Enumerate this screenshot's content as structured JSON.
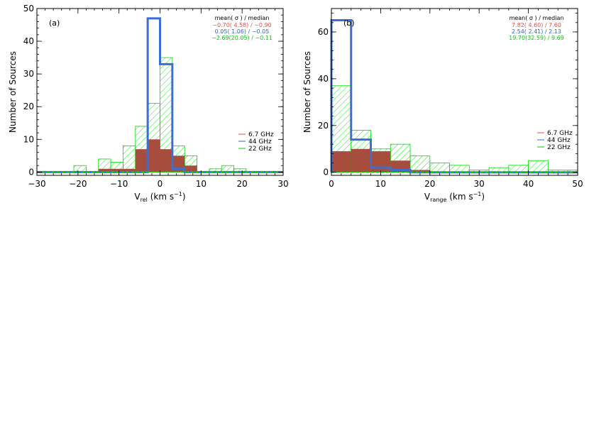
{
  "chart_data": [
    {
      "type": "histogram",
      "panel_label": "(a)",
      "xlabel_main": "V",
      "xlabel_sub": "rel",
      "xlabel_unit": " (km s",
      "xlabel_exp": "−1",
      "xlabel_close": ")",
      "ylabel": "Number of Sources",
      "xlim": [
        -30,
        30
      ],
      "ylim": [
        -1,
        50
      ],
      "xticks": [
        -30,
        -20,
        -10,
        0,
        10,
        20,
        30
      ],
      "yticks": [
        0,
        10,
        20,
        30,
        40,
        50
      ],
      "stats_header": "mean( σ ) / median",
      "stats": [
        {
          "text": "−0.70( 4.58) / −0.90",
          "color": "#d9534f"
        },
        {
          "text": "0.05( 1.06) / −0.05",
          "color": "#3a5fcd"
        },
        {
          "text": "−2.69(20.05) / −0.11",
          "color": "#00cc00"
        }
      ],
      "legend": [
        {
          "label": "6.7 GHz",
          "color": "#d9534f"
        },
        {
          "label": "44 GHz",
          "color": "#3a5fcd"
        },
        {
          "label": "22 GHz",
          "color": "#00cc00"
        }
      ],
      "series": [
        {
          "name": "22 GHz",
          "style": "hatch",
          "color": "#00dd00",
          "edges": [
            -30,
            -27,
            -24,
            -21,
            -18,
            -15,
            -12,
            -9,
            -6,
            -3,
            0,
            3,
            6,
            9,
            12,
            15,
            18,
            21,
            24,
            27,
            30
          ],
          "values": [
            0,
            0,
            0,
            2,
            0,
            4,
            3,
            8,
            14,
            21,
            35,
            8,
            5,
            0,
            1,
            2,
            1,
            0,
            0,
            0
          ]
        },
        {
          "name": "6.7 GHz",
          "style": "fill",
          "color": "#a64d3d",
          "edges": [
            -30,
            -27,
            -24,
            -21,
            -18,
            -15,
            -12,
            -9,
            -6,
            -3,
            0,
            3,
            6,
            9,
            12,
            15,
            18,
            21,
            24,
            27,
            30
          ],
          "values": [
            0,
            0,
            0,
            0,
            0,
            1,
            1,
            1,
            7,
            10,
            7,
            5,
            2,
            0,
            0,
            0,
            0,
            0,
            0,
            0
          ]
        },
        {
          "name": "44 GHz",
          "style": "step",
          "color": "#3a6fd8",
          "edges": [
            -30,
            -27,
            -24,
            -21,
            -18,
            -15,
            -12,
            -9,
            -6,
            -3,
            0,
            3,
            6,
            9,
            12,
            15,
            18,
            21,
            24,
            27,
            30
          ],
          "values": [
            0,
            0,
            0,
            0,
            0,
            0,
            0,
            0,
            0,
            47,
            33,
            1,
            0,
            0,
            0,
            0,
            0,
            0,
            0,
            0
          ]
        }
      ]
    },
    {
      "type": "histogram",
      "panel_label": "(b)",
      "xlabel_main": "V",
      "xlabel_sub": "range",
      "xlabel_unit": " (km s",
      "xlabel_exp": "−1",
      "xlabel_close": ")",
      "ylabel": "Number of Sources",
      "xlim": [
        0,
        50
      ],
      "ylim": [
        -1.3,
        70
      ],
      "xticks": [
        0,
        10,
        20,
        30,
        40,
        50
      ],
      "yticks": [
        0,
        20,
        40,
        60
      ],
      "stats_header": "mean( σ ) / median",
      "stats": [
        {
          "text": "7.82( 4.60) / 7.60",
          "color": "#d9534f"
        },
        {
          "text": "2.54( 2.41) / 2.13",
          "color": "#3a5fcd"
        },
        {
          "text": "19.70(32.59) / 9.69",
          "color": "#00cc00"
        }
      ],
      "legend": [
        {
          "label": "6.7 GHz",
          "color": "#d9534f"
        },
        {
          "label": "44 GHz",
          "color": "#3a5fcd"
        },
        {
          "label": "22 GHz",
          "color": "#00cc00"
        }
      ],
      "series": [
        {
          "name": "22 GHz",
          "style": "hatch",
          "color": "#00dd00",
          "edges": [
            0,
            4,
            8,
            12,
            16,
            20,
            24,
            28,
            32,
            36,
            40,
            44,
            48,
            50
          ],
          "values": [
            37,
            18,
            10,
            12,
            7,
            4,
            3,
            1,
            2,
            3,
            5,
            1,
            1
          ]
        },
        {
          "name": "6.7 GHz",
          "style": "fill",
          "color": "#a64d3d",
          "edges": [
            0,
            4,
            8,
            12,
            16,
            20,
            24,
            28,
            32,
            36,
            40,
            44,
            48,
            50
          ],
          "values": [
            9,
            10,
            9,
            5,
            1,
            0,
            0,
            0,
            0,
            0,
            0,
            0,
            0
          ]
        },
        {
          "name": "44 GHz",
          "style": "step",
          "color": "#3a6fd8",
          "edges": [
            0,
            4,
            8,
            12,
            16,
            20,
            24,
            28,
            32,
            36,
            40,
            44,
            48,
            50
          ],
          "values": [
            65,
            14,
            2,
            1,
            0,
            0,
            0,
            0,
            0,
            0,
            0,
            0,
            0
          ]
        }
      ]
    }
  ]
}
